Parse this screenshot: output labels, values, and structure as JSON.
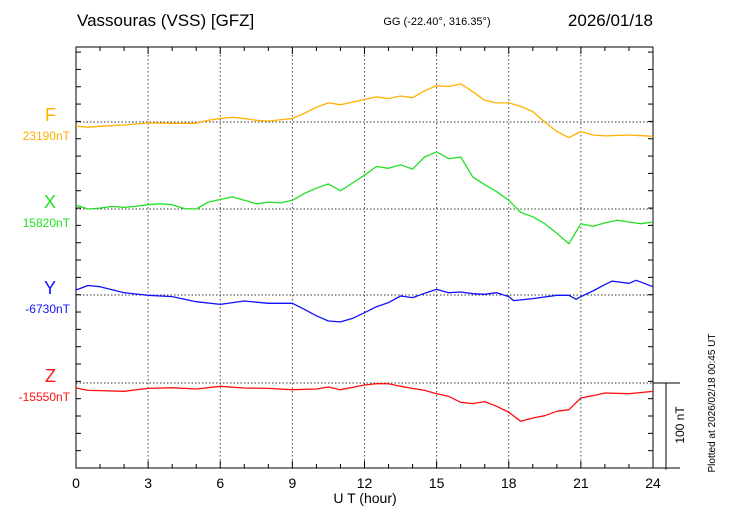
{
  "header": {
    "station": "Vassouras (VSS)  [GFZ]",
    "coords": "GG (-22.40°, 316.35°)",
    "date": "2026/01/18"
  },
  "footer": {
    "plotted": "Plotted at 2026/02/18 00:45 UT",
    "scale_label": "100 nT"
  },
  "chart_data": {
    "type": "line",
    "title": "Vassouras (VSS)  [GFZ]",
    "xlabel": "U T (hour)",
    "ylabel": "",
    "xlim": [
      0,
      24
    ],
    "xticks": [
      "0",
      "3",
      "6",
      "9",
      "12",
      "15",
      "18",
      "21",
      "24"
    ],
    "grid": true,
    "scale_bar_nT": 100,
    "series": [
      {
        "name": "F",
        "baseline_label": "23190nT",
        "baseline": 23190,
        "color": "#ffb000",
        "x": [
          0,
          0.5,
          1,
          2,
          3,
          4,
          5,
          5.5,
          6,
          6.5,
          7,
          7.5,
          8,
          9,
          9.5,
          10,
          10.5,
          11,
          11.5,
          12,
          12.5,
          13,
          13.5,
          14,
          14.5,
          15,
          15.5,
          16,
          16.5,
          17,
          17.5,
          18,
          18.5,
          19,
          19.5,
          20,
          20.5,
          21,
          21.5,
          22,
          23,
          24
        ],
        "offset": [
          -4.6,
          -6,
          -5,
          -3.5,
          -1,
          -1.5,
          -1.5,
          2,
          4,
          5.4,
          4,
          2,
          1,
          4,
          10,
          17,
          22,
          20,
          23,
          26,
          29,
          27,
          30,
          28,
          36,
          42,
          41,
          44,
          35,
          25,
          22,
          22,
          18,
          12,
          0,
          -11,
          -18,
          -11,
          -15,
          -16,
          -15,
          -16.5
        ]
      },
      {
        "name": "X",
        "baseline_label": "15820nT",
        "baseline": 15820,
        "color": "#22e022",
        "x": [
          0,
          0.5,
          1,
          1.5,
          2,
          2.5,
          3,
          3.5,
          4,
          4.5,
          5,
          5.5,
          6,
          6.5,
          7,
          7.5,
          8,
          8.5,
          9,
          9.5,
          10,
          10.5,
          11,
          11.5,
          12,
          12.5,
          13,
          13.5,
          14,
          14.5,
          15,
          15.5,
          16,
          16.5,
          17,
          17.5,
          18,
          18.5,
          19,
          19.5,
          20,
          20.5,
          21,
          21.5,
          22,
          22.5,
          23,
          23.5,
          24
        ],
        "offset": [
          4.6,
          0,
          1,
          3,
          2,
          3,
          5,
          6,
          5,
          0.5,
          0,
          8,
          11,
          14,
          10,
          6,
          8,
          7,
          10,
          18,
          24,
          29,
          21,
          30,
          39,
          49,
          47,
          51,
          46,
          60,
          66,
          58,
          60,
          37,
          28,
          20,
          10,
          -4,
          -9,
          -17,
          -28,
          -40,
          -17,
          -20,
          -16,
          -13,
          -15,
          -17,
          -15
        ]
      },
      {
        "name": "Y",
        "baseline_label": "-6730nT",
        "baseline": -6730,
        "color": "#1010ff",
        "x": [
          0,
          0.5,
          1,
          2,
          3,
          4,
          5,
          6,
          7,
          8,
          9,
          9.5,
          10,
          10.5,
          11,
          11.5,
          12,
          12.5,
          13,
          13.5,
          14,
          14.5,
          15,
          15.5,
          16,
          16.5,
          17,
          17.5,
          18,
          18.2,
          19,
          20,
          20.5,
          20.8,
          21,
          21.5,
          22,
          22.3,
          23,
          23.3,
          24
        ],
        "offset": [
          5.8,
          11,
          9.6,
          2.7,
          -0.4,
          -1.9,
          -7.7,
          -10.8,
          -6.9,
          -9.6,
          -9.6,
          -16.5,
          -24,
          -30,
          -31,
          -27,
          -20.4,
          -13.5,
          -8.8,
          -1.2,
          -3,
          2,
          6.5,
          2.7,
          3.5,
          1.5,
          0.8,
          2.7,
          -1.9,
          -6.5,
          -4.2,
          -0.4,
          -0.4,
          -5,
          -1.9,
          4.6,
          12,
          16,
          13.5,
          17,
          9.6
        ]
      },
      {
        "name": "Z",
        "baseline_label": "-15550nT",
        "baseline": -15550,
        "color": "#ff1010",
        "x": [
          0,
          0.5,
          1,
          2,
          3,
          4,
          5,
          6,
          7,
          8,
          9,
          10,
          10.5,
          11,
          12,
          12.5,
          13,
          13.5,
          14,
          14.5,
          15,
          15.5,
          16,
          16.5,
          17,
          17.5,
          18,
          18.5,
          19,
          19.5,
          20,
          20.5,
          21,
          21.5,
          22,
          23,
          24
        ],
        "offset": [
          -5.8,
          -8.5,
          -8.8,
          -9.6,
          -6.2,
          -5.4,
          -6.9,
          -3.8,
          -5.8,
          -6.2,
          -7.7,
          -6.9,
          -4.6,
          -7.7,
          -2.3,
          -0.8,
          -0.8,
          -3.8,
          -6.2,
          -8.5,
          -12.3,
          -15.4,
          -22.3,
          -23.8,
          -21.5,
          -26.9,
          -33.8,
          -44.2,
          -40.4,
          -37.7,
          -32.7,
          -30.8,
          -17.3,
          -14.6,
          -11.5,
          -12.3,
          -9.6
        ]
      }
    ]
  }
}
